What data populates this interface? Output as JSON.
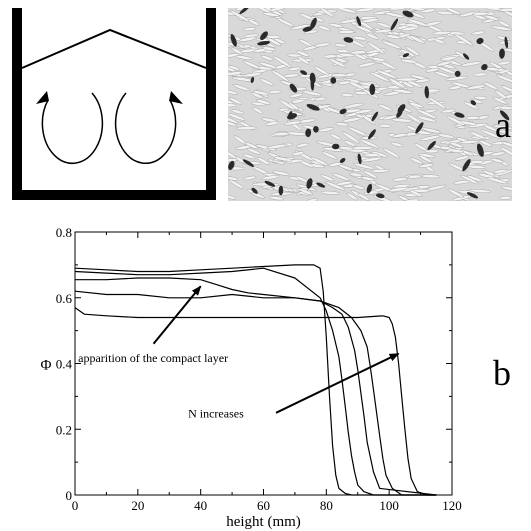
{
  "panel_labels": {
    "a": "a",
    "b": "b"
  },
  "colors": {
    "ink": "#000000",
    "background": "#ffffff",
    "photo_bg": "#d8d8d8",
    "grain": "#f2f2f2",
    "dark_grain": "#2a2a2a"
  },
  "chart_data": {
    "type": "line",
    "xlabel": "height (mm)",
    "ylabel": "Φ",
    "xlim": [
      0,
      120
    ],
    "ylim": [
      0,
      0.8
    ],
    "xticks": [
      0,
      20,
      40,
      60,
      80,
      100,
      120
    ],
    "yticks": [
      0,
      0.2,
      0.4,
      0.6,
      0.8
    ],
    "xtick_labels": [
      "0",
      "20",
      "40",
      "60",
      "80",
      "100",
      "120"
    ],
    "ytick_labels": [
      "0",
      "0.2",
      "0.4",
      "0.6",
      "0.8"
    ],
    "grid": false,
    "series": [
      {
        "x": [
          0,
          10,
          20,
          30,
          40,
          50,
          60,
          70,
          76,
          78,
          79,
          80,
          81,
          82,
          83,
          84,
          86,
          88,
          90,
          115
        ],
        "y": [
          0.69,
          0.685,
          0.68,
          0.68,
          0.685,
          0.69,
          0.695,
          0.7,
          0.7,
          0.69,
          0.62,
          0.48,
          0.3,
          0.15,
          0.06,
          0.02,
          0.005,
          0,
          0,
          0
        ]
      },
      {
        "x": [
          0,
          10,
          20,
          30,
          40,
          50,
          60,
          70,
          78,
          80,
          82,
          84,
          85,
          86,
          87,
          88,
          89,
          90,
          92,
          95,
          115
        ],
        "y": [
          0.68,
          0.675,
          0.67,
          0.67,
          0.675,
          0.68,
          0.69,
          0.66,
          0.6,
          0.56,
          0.5,
          0.42,
          0.35,
          0.27,
          0.19,
          0.12,
          0.07,
          0.03,
          0.01,
          0,
          0
        ]
      },
      {
        "x": [
          0,
          10,
          20,
          30,
          40,
          45,
          50,
          55,
          60,
          70,
          78,
          82,
          85,
          87,
          89,
          90,
          91,
          92,
          93,
          95,
          97,
          115
        ],
        "y": [
          0.655,
          0.655,
          0.66,
          0.66,
          0.655,
          0.64,
          0.625,
          0.615,
          0.61,
          0.6,
          0.59,
          0.57,
          0.55,
          0.51,
          0.44,
          0.38,
          0.31,
          0.24,
          0.16,
          0.07,
          0.02,
          0
        ]
      },
      {
        "x": [
          0,
          10,
          20,
          30,
          40,
          50,
          60,
          70,
          78,
          84,
          88,
          91,
          93,
          94,
          95,
          96,
          97,
          98,
          99,
          101,
          104,
          115
        ],
        "y": [
          0.62,
          0.61,
          0.61,
          0.6,
          0.6,
          0.61,
          0.6,
          0.6,
          0.59,
          0.57,
          0.54,
          0.5,
          0.45,
          0.39,
          0.32,
          0.25,
          0.18,
          0.11,
          0.06,
          0.02,
          0,
          0
        ]
      },
      {
        "x": [
          0,
          3,
          10,
          20,
          30,
          40,
          50,
          60,
          70,
          80,
          90,
          98,
          100,
          101,
          102,
          103,
          104,
          105,
          106,
          107,
          109,
          112,
          115
        ],
        "y": [
          0.57,
          0.55,
          0.545,
          0.54,
          0.54,
          0.54,
          0.54,
          0.54,
          0.54,
          0.54,
          0.54,
          0.545,
          0.54,
          0.52,
          0.48,
          0.4,
          0.3,
          0.2,
          0.11,
          0.05,
          0.01,
          0,
          0
        ]
      }
    ],
    "annotations": [
      {
        "text": "apparition of the compact layer",
        "x": 1,
        "y": 0.405,
        "arrow_from": [
          25,
          0.46
        ],
        "arrow_to": [
          40,
          0.635
        ]
      },
      {
        "text": "N increases",
        "x": 36,
        "y": 0.235,
        "arrow_from": [
          64,
          0.25
        ],
        "arrow_to": [
          103,
          0.43
        ]
      }
    ]
  }
}
